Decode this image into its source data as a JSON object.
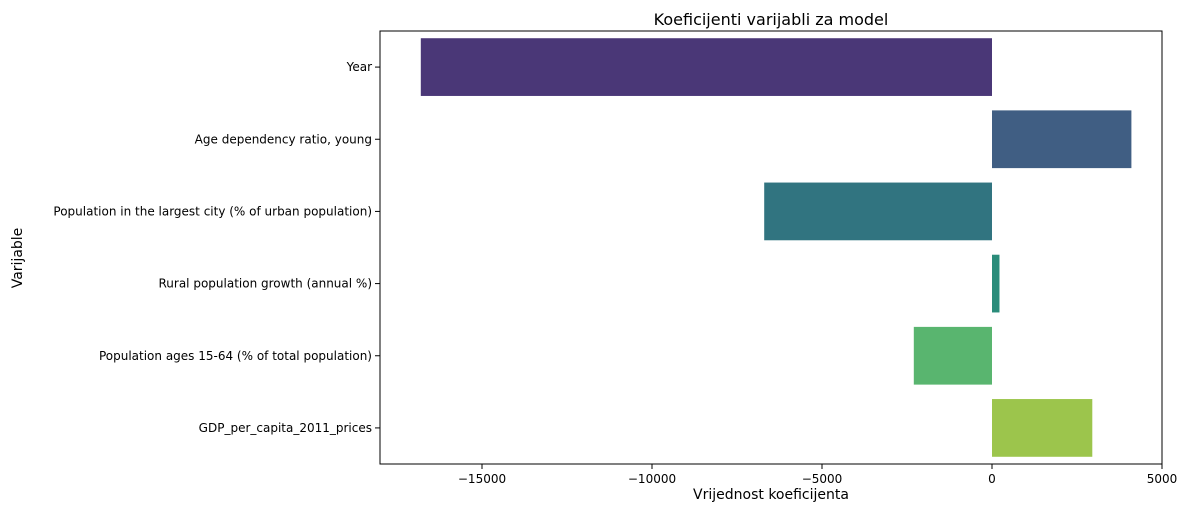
{
  "chart_data": {
    "type": "bar",
    "orientation": "horizontal",
    "title": "Koeficijenti varijabli za model",
    "xlabel": "Vrijednost koeficijenta",
    "ylabel": "Varijable",
    "categories": [
      "Year",
      "Age dependency ratio, young",
      "Population in the largest city (% of urban population)",
      "Rural population growth (annual %)",
      "Population ages 15-64 (% of total population)",
      "GDP_per_capita_2011_prices"
    ],
    "values": [
      -16800,
      4100,
      -6700,
      220,
      -2300,
      2950
    ],
    "colors": [
      "#4a3777",
      "#405e83",
      "#317480",
      "#2a8c7a",
      "#59b56f",
      "#9cc54c"
    ],
    "xlim": [
      -18000,
      5000
    ],
    "xticks": [
      -15000,
      -10000,
      -5000,
      0,
      5000
    ],
    "xtick_labels": [
      "−15000",
      "−10000",
      "−5000",
      "0",
      "5000"
    ],
    "grid": false,
    "legend": "none"
  }
}
